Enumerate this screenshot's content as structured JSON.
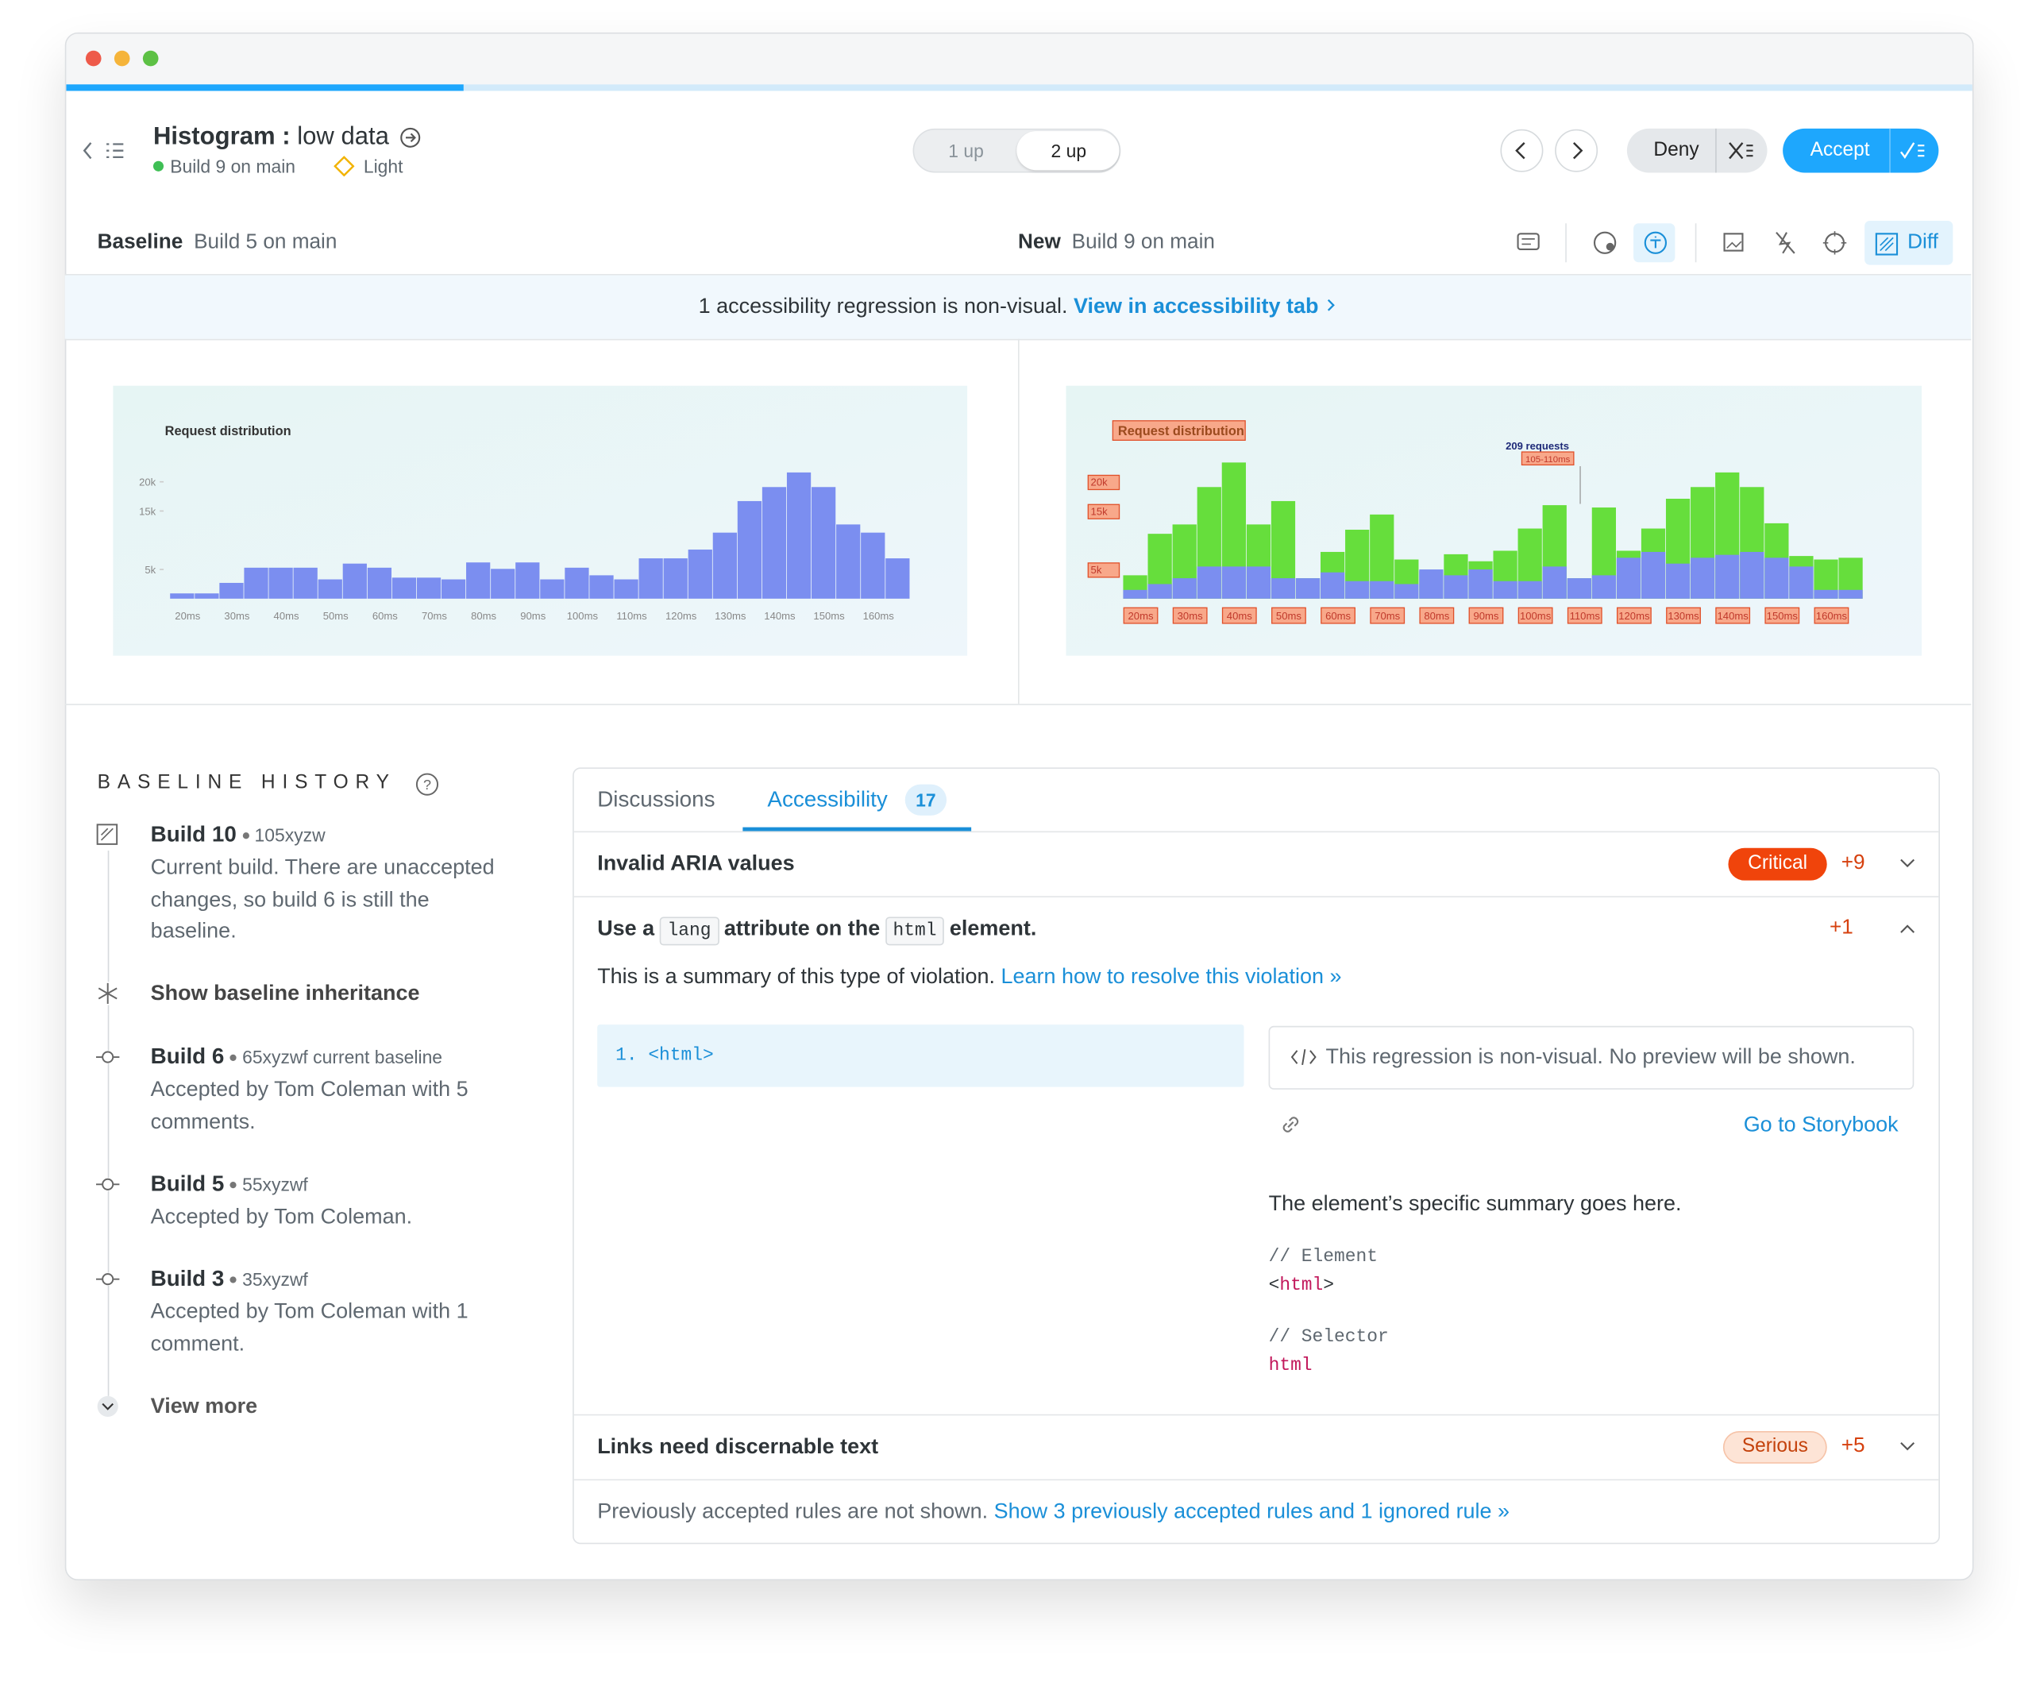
{
  "header": {
    "title": "Histogram :",
    "subtitle": "low data",
    "build": "Build 9 on main",
    "mode": "Light",
    "toggle": [
      "1 up",
      "2 up"
    ],
    "deny": "Deny",
    "accept": "Accept"
  },
  "compare": {
    "baseline_label": "Baseline",
    "baseline_build": "Build 5 on main",
    "new_label": "New",
    "new_build": "Build 9 on main",
    "diff": "Diff"
  },
  "banner": {
    "text": "1 accessibility regression is non-visual.",
    "link": "View in accessibility tab"
  },
  "baseline_chart": {
    "type": "bar",
    "title": "Request distribution",
    "categories": [
      "20ms",
      null,
      "30ms",
      null,
      "40ms",
      null,
      "50ms",
      null,
      "60ms",
      null,
      "70ms",
      null,
      "80ms",
      null,
      "90ms",
      null,
      "100ms",
      null,
      "110ms",
      null,
      "120ms",
      null,
      "130ms",
      null,
      "140ms",
      null,
      "150ms",
      null,
      "160ms",
      null
    ],
    "series": [
      {
        "color": "#7b8ef0",
        "values": [
          0.9,
          0.9,
          2.7,
          5.3,
          5.3,
          5.3,
          3.3,
          6.0,
          5.3,
          3.6,
          3.6,
          3.3,
          6.2,
          5.1,
          6.2,
          3.3,
          5.3,
          4.0,
          3.3,
          6.9,
          6.9,
          8.4,
          11.3,
          16.7,
          19.1,
          21.6,
          19.1,
          12.7,
          11.3,
          6.9
        ]
      }
    ],
    "ylim": [
      0,
      24
    ],
    "yticks": [
      {
        "value": 5,
        "label": "5k"
      },
      {
        "value": 15,
        "label": "15k"
      },
      {
        "value": 20,
        "label": "20k"
      }
    ],
    "boxed_labels": false
  },
  "new_chart": {
    "type": "bar",
    "title": "Request distribution",
    "categories": [
      "20ms",
      null,
      "30ms",
      null,
      "40ms",
      null,
      "50ms",
      null,
      "60ms",
      null,
      "70ms",
      null,
      "80ms",
      null,
      "90ms",
      null,
      "100ms",
      null,
      "110ms",
      null,
      "120ms",
      null,
      "130ms",
      null,
      "140ms",
      null,
      "150ms",
      null,
      "160ms",
      null
    ],
    "series": [
      {
        "color": "#66de3c",
        "values": [
          4.0,
          11.1,
          12.7,
          19.1,
          23.3,
          12.7,
          16.7,
          3.5,
          8.0,
          11.8,
          14.4,
          6.7,
          4.7,
          7.6,
          6.4,
          8.2,
          12.0,
          16.0,
          3.5,
          15.6,
          8.2,
          12.0,
          17.1,
          19.1,
          21.6,
          19.1,
          12.9,
          7.3,
          6.7,
          7.0
        ]
      },
      {
        "color": "#7b8ef0",
        "values": [
          1.5,
          2.5,
          3.5,
          5.5,
          5.5,
          5.5,
          3.5,
          3.5,
          4.5,
          3.0,
          3.0,
          2.5,
          5.0,
          4.0,
          5.0,
          3.0,
          3.0,
          5.5,
          3.5,
          4.0,
          7.0,
          8.0,
          6.0,
          7.0,
          7.5,
          8.0,
          7.0,
          5.5,
          1.5,
          1.5
        ]
      }
    ],
    "ylim": [
      0,
      24
    ],
    "yticks": [
      {
        "value": 5,
        "label": "5k"
      },
      {
        "value": 15,
        "label": "15k"
      },
      {
        "value": 20,
        "label": "20k"
      }
    ],
    "boxed_labels": true,
    "annotation": {
      "text": "209 requests",
      "range": "105-110ms"
    }
  },
  "history": {
    "title": "BASELINE HISTORY",
    "items": [
      {
        "build": "Build 10",
        "hash": "105xyzw",
        "text": "Current build. There are unaccepted changes, so build 6 is still the baseline."
      },
      {
        "build": "Build 6",
        "hash": "65xyzwf current baseline",
        "text": "Accepted by Tom Coleman with 5 comments."
      },
      {
        "build": "Build 5",
        "hash": "55xyzwf",
        "text": "Accepted by Tom Coleman."
      },
      {
        "build": "Build 3",
        "hash": "35xyzwf",
        "text": "Accepted by Tom Coleman with 1 comment."
      }
    ],
    "inheritance": "Show baseline inheritance",
    "view_more": "View more"
  },
  "tabs": [
    {
      "label": "Discussions"
    },
    {
      "label": "Accessibility",
      "count": 17
    }
  ],
  "rules": [
    {
      "title": "Invalid ARIA values",
      "severity": "Critical",
      "delta": "+9"
    },
    {
      "title_parts": [
        "Use a",
        "lang",
        "attribute on the",
        "html",
        "element."
      ],
      "delta": "+1",
      "summary": "This is a summary of this type of violation.",
      "learn": "Learn how to resolve this violation »",
      "code_index": "1.",
      "code": "<html>",
      "notice": "This regression is non-visual. No preview will be shown.",
      "storybook": "Go to Storybook",
      "detail": "The element’s specific summary goes here.",
      "element_comment": "// Element",
      "element_code": [
        "<",
        "html",
        ">"
      ],
      "selector_comment": "// Selector",
      "selector": "html"
    },
    {
      "title": "Links need discernable text",
      "severity": "Serious",
      "delta": "+5"
    }
  ],
  "footer": {
    "text": "Previously accepted rules are not shown.",
    "link": "Show 3 previously accepted rules and 1 ignored rule »"
  }
}
